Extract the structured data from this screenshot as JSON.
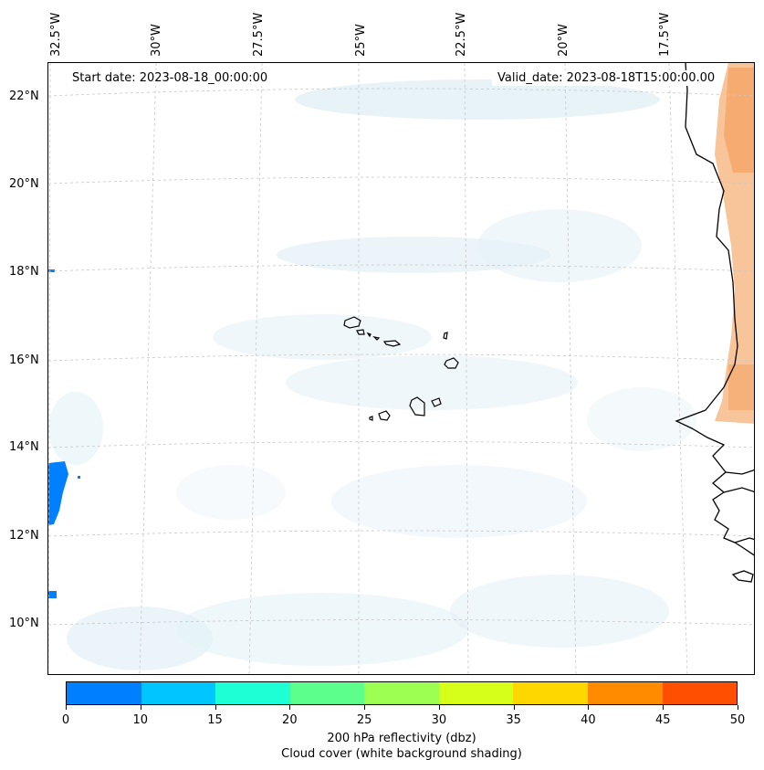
{
  "map": {
    "start_date": "Start date: 2023-08-18_00:00:00",
    "valid_date": "Valid_date: 2023-08-18T15:00:00.00",
    "longitude_labels": [
      "32.5°W",
      "30°W",
      "27.5°W",
      "25°W",
      "22.5°W",
      "20°W",
      "17.5°W"
    ],
    "latitude_labels": [
      "22°N",
      "20°N",
      "18°N",
      "16°N",
      "14°N",
      "12°N",
      "10°N"
    ],
    "colors": {
      "coastline": "#000000",
      "gridline": "#c8c8c8",
      "cloud_shading": "#d9ecf3",
      "land_warm_shading": "#f6b27a",
      "reflectivity_low": "#0080ff"
    }
  },
  "colorbar": {
    "ticks": [
      "0",
      "10",
      "15",
      "20",
      "25",
      "30",
      "35",
      "40",
      "45",
      "50"
    ],
    "colors": [
      "#0080ff",
      "#00c5ff",
      "#1fffd6",
      "#5cff8c",
      "#9cff52",
      "#d6ff1a",
      "#ffd700",
      "#ff8c00",
      "#ff4f00"
    ],
    "label_line1": "200 hPa reflectivity (dbz)",
    "label_line2": "Cloud cover (white background shading)"
  }
}
